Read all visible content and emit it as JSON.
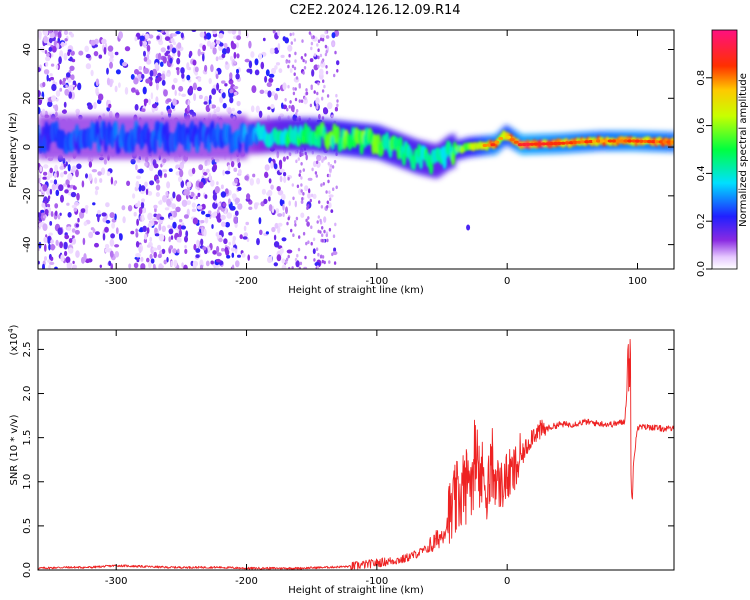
{
  "title": "C2E2.2024.126.12.09.R14",
  "chart_data": [
    {
      "type": "heatmap",
      "xlabel": "Height of straight line (km)",
      "ylabel": "Frequency (Hz)",
      "xlim": [
        -360,
        128
      ],
      "ylim": [
        -50,
        48
      ],
      "xticks": [
        -300,
        -200,
        -100,
        0,
        100
      ],
      "xtick_labels": [
        "-300",
        "-200",
        "-100",
        "0",
        "100"
      ],
      "yticks": [
        -40,
        -20,
        0,
        20,
        40
      ],
      "ytick_labels": [
        "-40",
        "-20",
        "0",
        "20",
        "40"
      ],
      "colorbar": {
        "label": "Normalized spectral amplitude",
        "range": [
          0,
          1
        ],
        "ticks": [
          0.0,
          0.2,
          0.4,
          0.6,
          0.8
        ],
        "tick_labels": [
          "0.0",
          "0.2",
          "0.4",
          "0.6",
          "0.8"
        ],
        "colormap": "rainbow (white-violet-blue-cyan-green-yellow-orange-red-pink)"
      },
      "ridge": [
        {
          "x": -340,
          "freq": 4,
          "amp": 0.25
        },
        {
          "x": -300,
          "freq": 4,
          "amp": 0.27
        },
        {
          "x": -250,
          "freq": 4,
          "amp": 0.25
        },
        {
          "x": -200,
          "freq": 4,
          "amp": 0.3
        },
        {
          "x": -175,
          "freq": 5,
          "amp": 0.45
        },
        {
          "x": -150,
          "freq": 5,
          "amp": 0.5
        },
        {
          "x": -125,
          "freq": 3.5,
          "amp": 0.55
        },
        {
          "x": -100,
          "freq": 2,
          "amp": 0.55
        },
        {
          "x": -85,
          "freq": -1,
          "amp": 0.5
        },
        {
          "x": -70,
          "freq": -4,
          "amp": 0.5
        },
        {
          "x": -55,
          "freq": -6,
          "amp": 0.45
        },
        {
          "x": -45,
          "freq": -2,
          "amp": 0.5
        },
        {
          "x": -30,
          "freq": 0,
          "amp": 0.6
        },
        {
          "x": -10,
          "freq": 1,
          "amp": 0.85
        },
        {
          "x": -2,
          "freq": 5,
          "amp": 0.7
        },
        {
          "x": 10,
          "freq": 1,
          "amp": 0.9
        },
        {
          "x": 40,
          "freq": 1.5,
          "amp": 0.85
        },
        {
          "x": 70,
          "freq": 2.5,
          "amp": 0.8
        },
        {
          "x": 95,
          "freq": 2.5,
          "amp": 0.85
        },
        {
          "x": 128,
          "freq": 2,
          "amp": 0.8
        }
      ]
    },
    {
      "type": "line",
      "xlabel": "Height of straight line (km)",
      "ylabel": "SNR (10 * v/v)",
      "ylabel_multiplier": "(x10",
      "ylabel_exponent": "4",
      "ylabel_multiplier_close": ")",
      "xlim": [
        -360,
        128
      ],
      "ylim": [
        0,
        2.72
      ],
      "xticks": [
        -300,
        -200,
        -100,
        0
      ],
      "xtick_labels": [
        "-300",
        "-200",
        "-100",
        "0"
      ],
      "yticks": [
        0.0,
        0.5,
        1.0,
        1.5,
        2.0,
        2.5
      ],
      "ytick_labels": [
        "0.0",
        "0.5",
        "1.0",
        "1.5",
        "2.0",
        "2.5"
      ],
      "series": [
        {
          "color": "#ee2222",
          "x": [
            -360,
            -340,
            -320,
            -300,
            -280,
            -260,
            -240,
            -220,
            -200,
            -180,
            -160,
            -140,
            -120,
            -100,
            -90,
            -80,
            -70,
            -60,
            -50,
            -45,
            -40,
            -35,
            -30,
            -25,
            -20,
            -15,
            -10,
            -5,
            0,
            5,
            10,
            20,
            30,
            40,
            50,
            60,
            70,
            80,
            90,
            94,
            96,
            100,
            110,
            120,
            128
          ],
          "y": [
            0.02,
            0.03,
            0.03,
            0.05,
            0.04,
            0.03,
            0.03,
            0.03,
            0.02,
            0.02,
            0.02,
            0.03,
            0.04,
            0.08,
            0.1,
            0.12,
            0.18,
            0.25,
            0.4,
            0.55,
            0.75,
            0.9,
            1.0,
            1.15,
            1.05,
            1.0,
            1.05,
            0.95,
            1.05,
            1.1,
            1.25,
            1.55,
            1.6,
            1.65,
            1.65,
            1.68,
            1.66,
            1.65,
            1.68,
            2.4,
            1.1,
            1.62,
            1.62,
            1.6,
            1.6
          ]
        }
      ]
    }
  ]
}
